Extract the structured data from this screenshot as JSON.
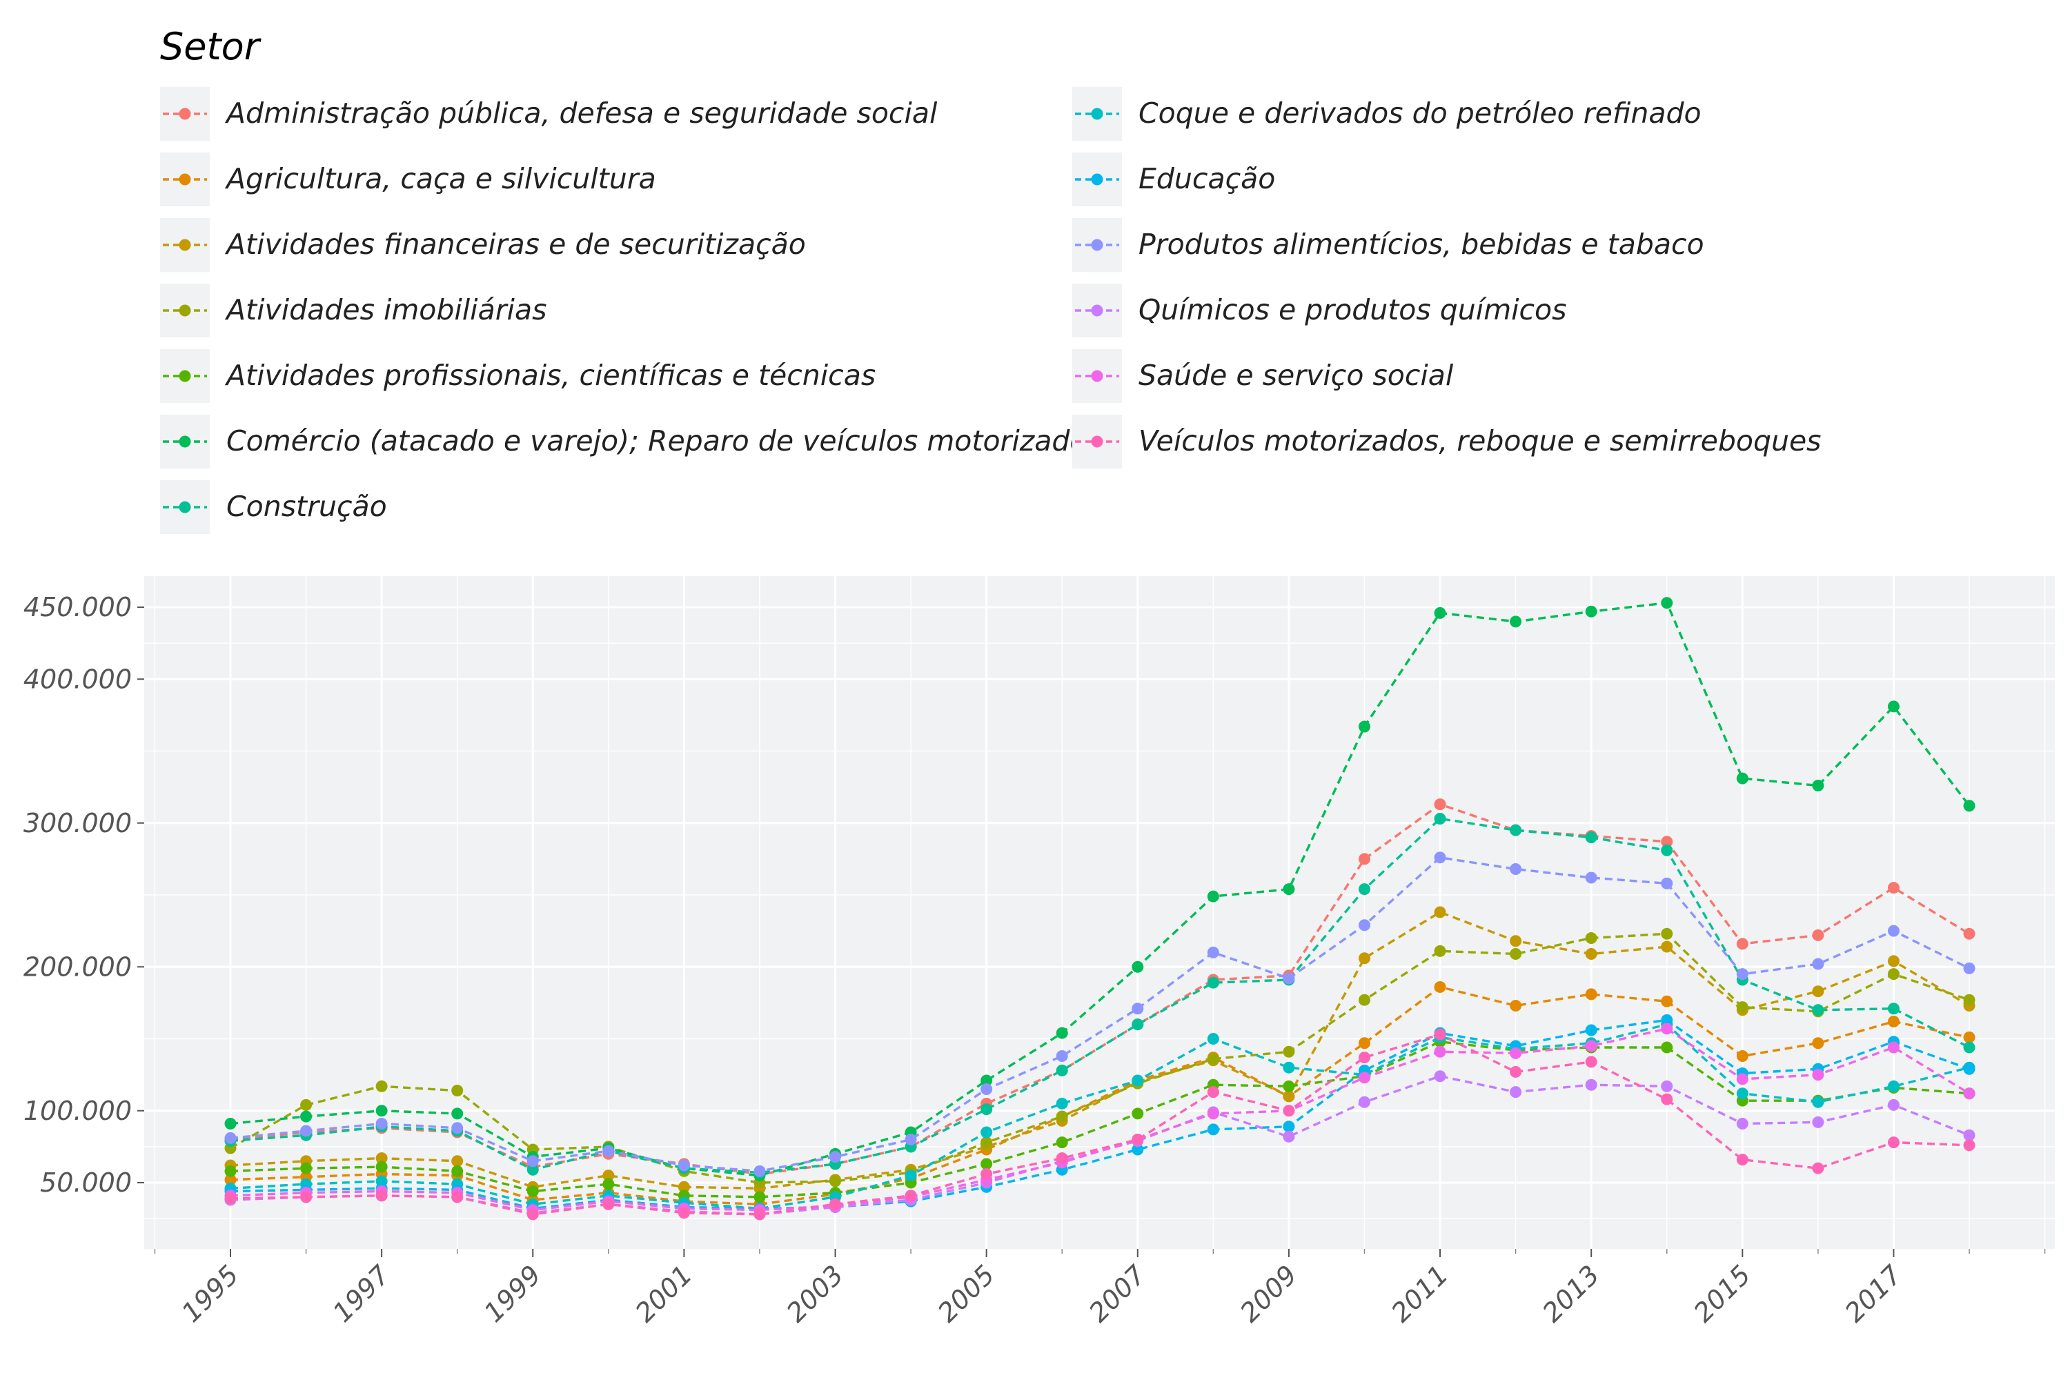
{
  "legend": {
    "title": "Setor"
  },
  "chart_data": {
    "type": "line",
    "title": "",
    "xlabel": "",
    "ylabel": "",
    "legend_title": "Setor",
    "legend_position": "top",
    "grid": true,
    "xlim": [
      1994,
      2019.2
    ],
    "ylim": [
      0,
      470000
    ],
    "x": [
      1995,
      1996,
      1997,
      1998,
      1999,
      2000,
      2001,
      2002,
      2003,
      2004,
      2005,
      2006,
      2007,
      2008,
      2009,
      2010,
      2011,
      2012,
      2013,
      2014,
      2015,
      2016,
      2017,
      2018
    ],
    "x_ticks": [
      1995,
      1997,
      1999,
      2001,
      2003,
      2005,
      2007,
      2009,
      2011,
      2013,
      2015,
      2017
    ],
    "x_tick_labels": [
      "1995",
      "1997",
      "1999",
      "2001",
      "2003",
      "2005",
      "2007",
      "2009",
      "2011",
      "2013",
      "2015",
      "2017"
    ],
    "y_ticks": [
      50000,
      100000,
      200000,
      300000,
      400000,
      450000
    ],
    "y_tick_labels": [
      "50.000",
      "100.000",
      "200.000",
      "300.000",
      "400.000",
      "450.000"
    ],
    "y_minor_gridlines": [
      25000,
      75000,
      150000,
      250000,
      350000,
      425000
    ],
    "series": [
      {
        "name": "Administração pública, defesa e seguridade social",
        "color": "#F8766D",
        "values": [
          80000,
          85000,
          88000,
          85000,
          61000,
          70000,
          63000,
          56000,
          63000,
          75000,
          105000,
          128000,
          160000,
          191000,
          194000,
          275000,
          313000,
          295000,
          291000,
          287000,
          216000,
          222000,
          255000,
          223000
        ]
      },
      {
        "name": "Agricultura, caça e silvicultura",
        "color": "#E38900",
        "values": [
          52000,
          54000,
          56000,
          55000,
          38000,
          43000,
          37000,
          35000,
          42000,
          53000,
          73000,
          96000,
          121000,
          137000,
          110000,
          147000,
          186000,
          173000,
          181000,
          176000,
          138000,
          147000,
          162000,
          151000
        ]
      },
      {
        "name": "Atividades financeiras e de securitização",
        "color": "#C49A00",
        "values": [
          62000,
          65000,
          67000,
          65000,
          47000,
          55000,
          47000,
          46000,
          52000,
          59000,
          75000,
          93000,
          120000,
          135000,
          110000,
          206000,
          238000,
          218000,
          209000,
          214000,
          170000,
          183000,
          204000,
          173000
        ]
      },
      {
        "name": "Atividades imobiliárias",
        "color": "#99A800",
        "values": [
          74000,
          104000,
          117000,
          114000,
          73000,
          75000,
          58000,
          50000,
          51000,
          57000,
          78000,
          96000,
          119000,
          136000,
          141000,
          177000,
          211000,
          209000,
          220000,
          223000,
          172000,
          169000,
          195000,
          177000
        ]
      },
      {
        "name": "Atividades profissionais, científicas e técnicas",
        "color": "#53B400",
        "values": [
          58000,
          60000,
          61000,
          58000,
          44000,
          49000,
          41000,
          40000,
          43000,
          50000,
          63000,
          78000,
          98000,
          118000,
          117000,
          124000,
          148000,
          142000,
          144000,
          144000,
          107000,
          107000,
          116000,
          112000
        ]
      },
      {
        "name": "Comércio (atacado e varejo); Reparo de veículos motorizados",
        "color": "#00BC56",
        "values": [
          91000,
          96000,
          100000,
          98000,
          68000,
          74000,
          60000,
          55000,
          70000,
          85000,
          121000,
          154000,
          200000,
          249000,
          254000,
          367000,
          446000,
          440000,
          447000,
          453000,
          331000,
          326000,
          381000,
          312000
        ]
      },
      {
        "name": "Construção",
        "color": "#00C094",
        "values": [
          79000,
          83000,
          89000,
          86000,
          59000,
          72000,
          60000,
          57000,
          63000,
          75000,
          101000,
          128000,
          160000,
          189000,
          191000,
          254000,
          303000,
          295000,
          290000,
          281000,
          191000,
          170000,
          171000,
          144000
        ]
      },
      {
        "name": "Coque e derivados do petróleo refinado",
        "color": "#00BFC4",
        "values": [
          46000,
          49000,
          51000,
          49000,
          35000,
          41000,
          36000,
          32000,
          40000,
          55000,
          85000,
          105000,
          121000,
          150000,
          130000,
          125000,
          151000,
          143000,
          147000,
          160000,
          112000,
          106000,
          117000,
          130000
        ]
      },
      {
        "name": "Educação",
        "color": "#00B6EB",
        "values": [
          44000,
          45000,
          46000,
          45000,
          32000,
          38000,
          33000,
          32000,
          33000,
          37000,
          47000,
          59000,
          73000,
          87000,
          89000,
          128000,
          154000,
          145000,
          156000,
          163000,
          126000,
          129000,
          148000,
          129000
        ]
      },
      {
        "name": "Produtos alimentícios, bebidas e tabaco",
        "color": "#8C94FF",
        "values": [
          81000,
          86000,
          91000,
          88000,
          65000,
          72000,
          62000,
          58000,
          68000,
          80000,
          115000,
          138000,
          171000,
          210000,
          192000,
          229000,
          276000,
          268000,
          262000,
          258000,
          195000,
          202000,
          225000,
          199000
        ]
      },
      {
        "name": "Químicos e produtos químicos",
        "color": "#C77CFF",
        "values": [
          38000,
          40000,
          41000,
          40000,
          29000,
          35000,
          30000,
          28000,
          33000,
          38000,
          50000,
          65000,
          79000,
          99000,
          82000,
          106000,
          124000,
          113000,
          118000,
          117000,
          91000,
          92000,
          104000,
          83000
        ]
      },
      {
        "name": "Saúde e serviço social",
        "color": "#F066EA",
        "values": [
          41000,
          43000,
          44000,
          43000,
          31000,
          37000,
          32000,
          31000,
          34000,
          40000,
          52000,
          64000,
          80000,
          98000,
          100000,
          123000,
          141000,
          140000,
          145000,
          157000,
          122000,
          125000,
          144000,
          112000
        ]
      },
      {
        "name": "Veículos motorizados, reboque e semirreboques",
        "color": "#FF63B6",
        "values": [
          39000,
          40000,
          41000,
          40000,
          28000,
          35000,
          29000,
          28000,
          35000,
          41000,
          56000,
          67000,
          80000,
          113000,
          100000,
          137000,
          153000,
          127000,
          134000,
          108000,
          66000,
          60000,
          78000,
          76000
        ]
      }
    ]
  }
}
